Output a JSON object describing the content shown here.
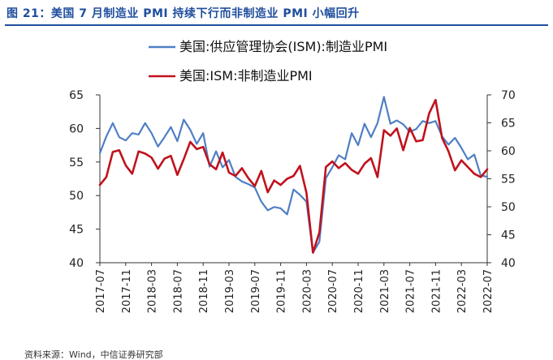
{
  "figure": {
    "title": "图 21：美国 7 月制造业 PMI 持续下行而非制造业 PMI 小幅回升",
    "source": "资料来源：Wind，中信证券研究部"
  },
  "colors": {
    "ism_manufacturing": "#4f7fc4",
    "ism_non_manufacturing": "#c0121d",
    "title": "#1f4e9e",
    "axis": "#333333"
  },
  "chart_data": {
    "type": "line",
    "legend": [
      "美国:供应管理协会(ISM):制造业PMI",
      "美国:ISM:非制造业PMI"
    ],
    "legend_placement": "top-center",
    "grid": false,
    "x": [
      "2017-07",
      "2017-08",
      "2017-09",
      "2017-10",
      "2017-11",
      "2017-12",
      "2018-01",
      "2018-02",
      "2018-03",
      "2018-04",
      "2018-05",
      "2018-06",
      "2018-07",
      "2018-08",
      "2018-09",
      "2018-10",
      "2018-11",
      "2018-12",
      "2019-01",
      "2019-02",
      "2019-03",
      "2019-04",
      "2019-05",
      "2019-06",
      "2019-07",
      "2019-08",
      "2019-09",
      "2019-10",
      "2019-11",
      "2019-12",
      "2020-01",
      "2020-02",
      "2020-03",
      "2020-04",
      "2020-05",
      "2020-06",
      "2020-07",
      "2020-08",
      "2020-09",
      "2020-10",
      "2020-11",
      "2020-12",
      "2021-01",
      "2021-02",
      "2021-03",
      "2021-04",
      "2021-05",
      "2021-06",
      "2021-07",
      "2021-08",
      "2021-09",
      "2021-10",
      "2021-11",
      "2021-12",
      "2022-01",
      "2022-02",
      "2022-03",
      "2022-04",
      "2022-05",
      "2022-06",
      "2022-07"
    ],
    "xticks": [
      "2017-07",
      "2017-11",
      "2018-03",
      "2018-07",
      "2018-11",
      "2019-03",
      "2019-07",
      "2019-11",
      "2020-03",
      "2020-07",
      "2020-11",
      "2021-03",
      "2021-07",
      "2021-11",
      "2022-03",
      "2022-07"
    ],
    "y_left": {
      "ylim": [
        40,
        65
      ],
      "ticks": [
        40,
        45,
        50,
        55,
        60,
        65
      ]
    },
    "y_right": {
      "ylim": [
        40,
        70
      ],
      "ticks": [
        40,
        45,
        50,
        55,
        60,
        65,
        70
      ]
    },
    "series": [
      {
        "name": "美国:供应管理协会(ISM):制造业PMI",
        "axis": "left",
        "values": [
          56.3,
          58.8,
          60.8,
          58.7,
          58.2,
          59.3,
          59.1,
          60.8,
          59.3,
          57.3,
          58.7,
          60.2,
          58.1,
          61.3,
          59.8,
          57.7,
          59.3,
          54.3,
          56.6,
          54.2,
          55.3,
          52.8,
          52.1,
          51.7,
          51.2,
          49.1,
          47.8,
          48.3,
          48.1,
          47.2,
          50.9,
          50.1,
          49.1,
          41.5,
          43.1,
          52.6,
          54.2,
          56.0,
          55.4,
          59.3,
          57.5,
          60.7,
          58.7,
          60.8,
          64.7,
          60.7,
          61.2,
          60.6,
          59.5,
          59.9,
          61.1,
          60.8,
          61.1,
          58.8,
          57.6,
          58.6,
          57.1,
          55.4,
          56.1,
          53.0,
          52.8
        ]
      },
      {
        "name": "美国:ISM:非制造业PMI",
        "axis": "right",
        "values": [
          53.9,
          55.3,
          59.8,
          60.1,
          57.4,
          55.9,
          59.9,
          59.5,
          58.8,
          56.8,
          58.6,
          59.1,
          55.7,
          58.5,
          61.6,
          60.3,
          60.7,
          57.6,
          56.7,
          59.7,
          56.1,
          55.5,
          56.9,
          55.1,
          53.7,
          56.4,
          52.6,
          54.7,
          53.9,
          55.0,
          55.5,
          57.3,
          52.5,
          41.8,
          45.4,
          57.1,
          58.1,
          56.9,
          57.8,
          56.6,
          55.9,
          57.7,
          58.7,
          55.3,
          63.7,
          62.7,
          64.0,
          60.1,
          64.1,
          61.7,
          61.9,
          66.7,
          69.1,
          62.3,
          59.9,
          56.5,
          58.3,
          57.1,
          55.9,
          55.3,
          56.7
        ]
      }
    ]
  }
}
